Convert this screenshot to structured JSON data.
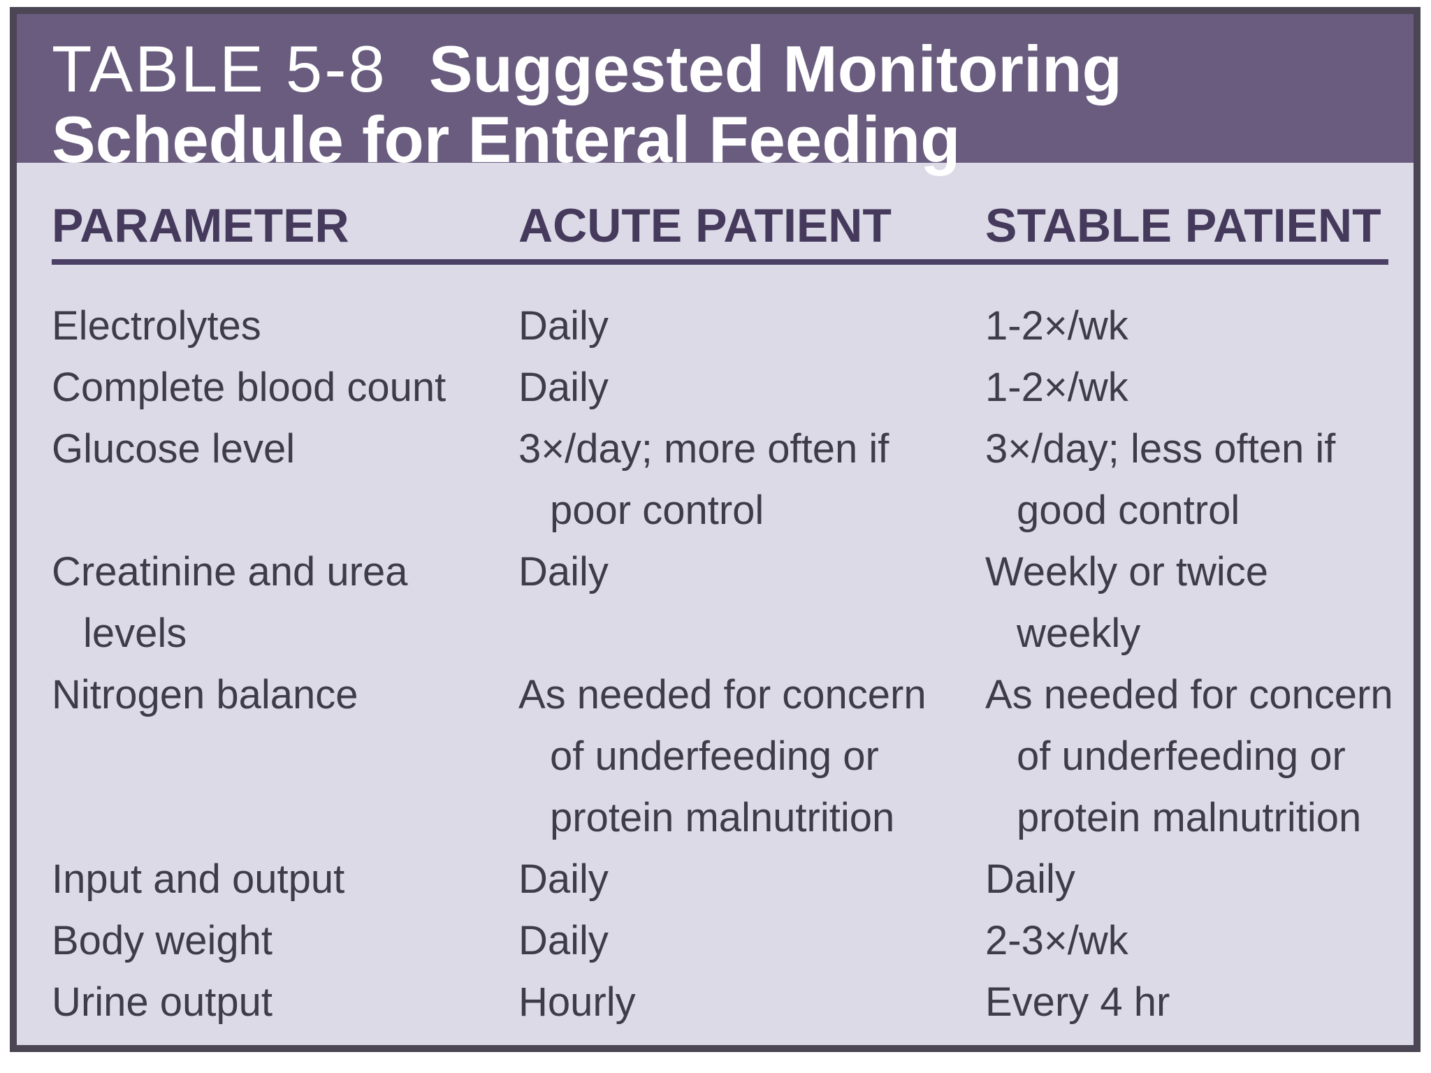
{
  "title": {
    "number": "TABLE 5-8",
    "text": "Suggested Monitoring Schedule for Enteral Feeding"
  },
  "table": {
    "columns": [
      "PARAMETER",
      "ACUTE PATIENT",
      "STABLE PATIENT"
    ],
    "rows": [
      {
        "parameter": "Electrolytes",
        "acute": "Daily",
        "stable": "1-2×/wk"
      },
      {
        "parameter": "Complete blood count",
        "acute": "Daily",
        "stable": "1-2×/wk"
      },
      {
        "parameter": "Glucose level",
        "acute": "3×/day; more often if\npoor control",
        "stable": "3×/day; less often if\ngood control"
      },
      {
        "parameter": "Creatinine and urea\nlevels",
        "acute": "Daily",
        "stable": "Weekly or twice\nweekly"
      },
      {
        "parameter": "Nitrogen balance",
        "acute": "As needed for concern\nof underfeeding or\nprotein malnutrition",
        "stable": "As needed for concern\nof underfeeding or\nprotein malnutrition"
      },
      {
        "parameter": "Input and output",
        "acute": "Daily",
        "stable": "Daily"
      },
      {
        "parameter": "Body weight",
        "acute": "Daily",
        "stable": "2-3×/wk"
      },
      {
        "parameter": "Urine output",
        "acute": "Hourly",
        "stable": "Every 4 hr"
      }
    ]
  },
  "colors": {
    "banner_bg": "#695c7e",
    "banner_text": "#ffffff",
    "body_bg": "#dcdae7",
    "border": "#4b4554",
    "header_text": "#453a5c",
    "rule": "#4c4066",
    "body_text": "#3f3c4a",
    "page_bg": "#ffffff"
  }
}
